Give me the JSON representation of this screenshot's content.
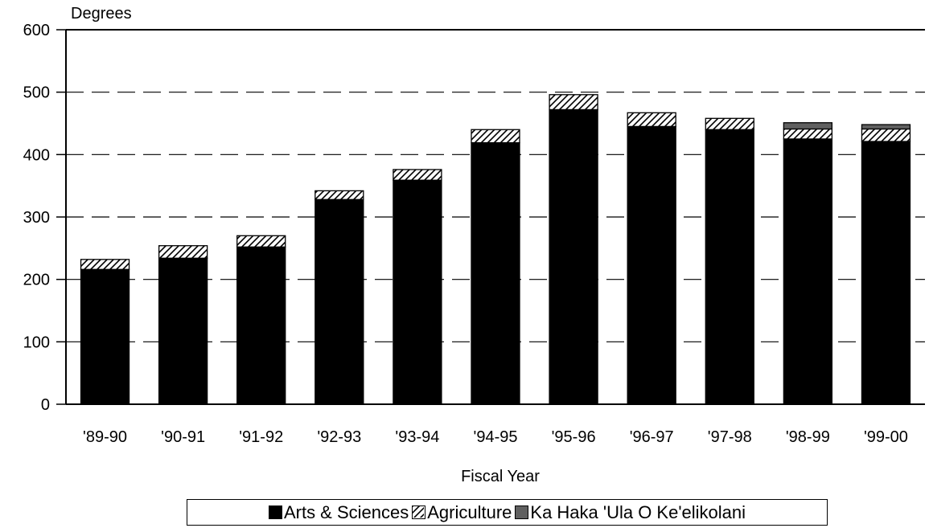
{
  "chart_data": {
    "type": "bar",
    "stacked": true,
    "ylabel": "Degrees",
    "xlabel": "Fiscal Year",
    "ylim": [
      0,
      600
    ],
    "yticks": [
      0,
      100,
      200,
      300,
      400,
      500,
      600
    ],
    "grid": "dashed horizontal",
    "legend_position": "bottom",
    "categories": [
      "'89-90",
      "'90-91",
      "'91-92",
      "'92-93",
      "'93-94",
      "'94-95",
      "'95-96",
      "'96-97",
      "'97-98",
      "'98-99",
      "'99-00"
    ],
    "series": [
      {
        "name": "Arts & Sciences",
        "color": "#000000",
        "pattern": "solid",
        "values": [
          216,
          234,
          252,
          328,
          359,
          419,
          472,
          445,
          440,
          425,
          421
        ]
      },
      {
        "name": "Agriculture",
        "color": "#ffffff",
        "pattern": "hatched",
        "values": [
          16,
          20,
          18,
          14,
          17,
          21,
          24,
          22,
          18,
          16,
          20
        ]
      },
      {
        "name": "Ka Haka 'Ula O Ke'elikolani",
        "color": "#606060",
        "pattern": "solid",
        "values": [
          0,
          0,
          0,
          0,
          0,
          0,
          0,
          0,
          0,
          10,
          7
        ]
      }
    ]
  }
}
